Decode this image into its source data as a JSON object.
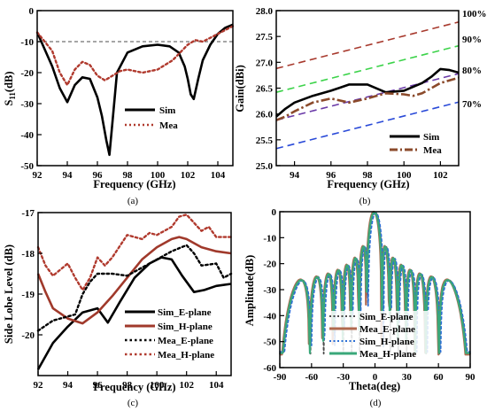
{
  "chart_data": [
    {
      "type": "line",
      "id": "a",
      "caption": "(a)",
      "xlabel": "Frequency (GHz)",
      "ylabel": "S11(dB)",
      "ylabel_main": "S",
      "ylabel_sub": "11",
      "ylabel_unit": "(dB)",
      "xlim": [
        92,
        105
      ],
      "ylim": [
        -50,
        0
      ],
      "xticks": [
        92,
        94,
        96,
        98,
        100,
        102,
        104
      ],
      "yticks": [
        0,
        -10,
        -20,
        -30,
        -40,
        -50
      ],
      "grid": false,
      "legend_position": "center-right",
      "reference_lines": [
        {
          "y": -10,
          "color": "#888888",
          "style": "dashed"
        }
      ],
      "series": [
        {
          "name": "Sim",
          "color": "#000000",
          "style": "solid",
          "x": [
            92,
            93,
            93.5,
            94,
            94.5,
            95,
            95.5,
            96,
            96.3,
            96.6,
            96.8,
            97,
            97.3,
            98,
            99,
            100,
            100.8,
            101.4,
            101.8,
            102,
            102.2,
            102.4,
            102.7,
            103,
            103.5,
            104,
            104.5,
            105
          ],
          "y": [
            -7,
            -18,
            -25,
            -29.5,
            -24,
            -21.5,
            -22,
            -28,
            -34,
            -42,
            -46.5,
            -36,
            -20,
            -13.5,
            -11.5,
            -11,
            -11.5,
            -13.5,
            -18,
            -22,
            -27,
            -28.5,
            -22,
            -16,
            -11,
            -7.5,
            -5.5,
            -4.5
          ]
        },
        {
          "name": "Mea",
          "color": "#b03a2e",
          "style": "dotted",
          "x": [
            92,
            93,
            93.5,
            94,
            94.5,
            95,
            95.5,
            96,
            96.5,
            97,
            97.5,
            98,
            98.5,
            99,
            100,
            101,
            102,
            102.5,
            103,
            104,
            105
          ],
          "y": [
            -7,
            -13,
            -20,
            -24,
            -19,
            -16.5,
            -17.5,
            -21,
            -22.5,
            -21,
            -19.5,
            -19,
            -19.5,
            -20,
            -19,
            -16,
            -11,
            -9.5,
            -10,
            -7.5,
            -5
          ]
        }
      ]
    },
    {
      "type": "line",
      "id": "b",
      "caption": "(b)",
      "xlabel": "Frequency (GHz)",
      "ylabel": "Gain(dBi)",
      "xlim": [
        93,
        103
      ],
      "ylim": [
        25.0,
        28.0
      ],
      "xticks": [
        94,
        96,
        98,
        100,
        102
      ],
      "yticks": [
        25.0,
        25.5,
        26.0,
        26.5,
        27.0,
        27.5,
        28.0
      ],
      "ytick_labels": [
        "25.0",
        "25.5",
        "26.0",
        "26.5",
        "27.0",
        "27.5",
        "28.0"
      ],
      "right_labels": [
        {
          "text": "100%",
          "y": 27.95
        },
        {
          "text": "90%",
          "y": 27.45
        },
        {
          "text": "80%",
          "y": 26.85
        },
        {
          "text": "70%",
          "y": 26.2
        }
      ],
      "grid": false,
      "legend_position": "bottom-right",
      "efficiency_lines": [
        {
          "color": "#a83a2e",
          "y_start": 26.88,
          "y_end": 27.78
        },
        {
          "color": "#3cd34a",
          "y_start": 26.42,
          "y_end": 27.32
        },
        {
          "color": "#6a3aa8",
          "y_start": 25.88,
          "y_end": 26.78
        },
        {
          "color": "#2a4ad8",
          "y_start": 25.33,
          "y_end": 26.23
        }
      ],
      "series": [
        {
          "name": "Sim",
          "color": "#000000",
          "style": "solid",
          "x": [
            93,
            93.5,
            94,
            95,
            96,
            97,
            98,
            99,
            100,
            101,
            101.5,
            102,
            102.5,
            103
          ],
          "y": [
            25.95,
            26.1,
            26.22,
            26.35,
            26.45,
            26.57,
            26.57,
            26.42,
            26.45,
            26.6,
            26.72,
            26.87,
            26.85,
            26.8
          ]
        },
        {
          "name": "Mea",
          "color": "#8b4a2b",
          "style": "dashdot",
          "x": [
            93,
            93.5,
            94,
            95,
            96,
            97,
            98,
            99,
            100,
            100.5,
            101,
            102,
            103
          ],
          "y": [
            25.88,
            25.95,
            26.05,
            26.22,
            26.3,
            26.22,
            26.3,
            26.4,
            26.38,
            26.35,
            26.4,
            26.6,
            26.7
          ]
        }
      ]
    },
    {
      "type": "line",
      "id": "c",
      "caption": "(c)",
      "xlabel": "Frequency (GHz)",
      "ylabel": "Side Lobe Level (dB)",
      "xlim": [
        92,
        105
      ],
      "ylim": [
        -21,
        -17
      ],
      "xticks": [
        92,
        94,
        96,
        98,
        100,
        102,
        104
      ],
      "yticks": [
        -17,
        -18,
        -19,
        -20
      ],
      "grid": false,
      "legend_position": "bottom-right",
      "series": [
        {
          "name": "Sim_E-plane",
          "color": "#000000",
          "style": "solid",
          "x": [
            92,
            93,
            94,
            95,
            96,
            96.7,
            97.5,
            98.5,
            99.5,
            100.3,
            101,
            101.7,
            102.5,
            103.2,
            104,
            105
          ],
          "y": [
            -20.85,
            -20.2,
            -19.8,
            -19.45,
            -19.35,
            -19.7,
            -19.2,
            -18.6,
            -18.25,
            -18.1,
            -18.15,
            -18.55,
            -18.95,
            -18.9,
            -18.8,
            -18.75
          ]
        },
        {
          "name": "Sim_H-plane",
          "color": "#a0392b",
          "style": "solid",
          "x": [
            92,
            92.5,
            93,
            94,
            95,
            96,
            97,
            98,
            99,
            100,
            101,
            101.5,
            102,
            103,
            104,
            105
          ],
          "y": [
            -18.5,
            -18.95,
            -19.35,
            -19.6,
            -19.72,
            -19.45,
            -19.05,
            -18.6,
            -18.15,
            -17.85,
            -17.65,
            -17.6,
            -17.65,
            -17.85,
            -17.95,
            -18.0
          ]
        },
        {
          "name": "Mea_E-plane",
          "color": "#000000",
          "style": "dotted",
          "x": [
            92,
            93,
            94,
            94.5,
            95,
            95.5,
            96,
            97,
            98,
            99,
            99.5,
            100,
            101,
            102,
            102.5,
            103,
            104,
            104.5,
            105
          ],
          "y": [
            -19.9,
            -19.65,
            -19.55,
            -19.5,
            -19.0,
            -18.7,
            -18.5,
            -18.5,
            -18.55,
            -18.35,
            -18.25,
            -18.15,
            -17.95,
            -17.8,
            -18.0,
            -18.3,
            -18.25,
            -18.6,
            -18.5
          ]
        },
        {
          "name": "Mea_H-plane",
          "color": "#b03a2e",
          "style": "dotted",
          "x": [
            92,
            92.5,
            93,
            93.5,
            94,
            94.5,
            95,
            95.5,
            96,
            96.5,
            97,
            98,
            99,
            99.5,
            100,
            101,
            101.5,
            102,
            103,
            103.5,
            104,
            105
          ],
          "y": [
            -17.85,
            -18.3,
            -18.55,
            -18.4,
            -18.25,
            -18.6,
            -18.9,
            -18.6,
            -18.1,
            -18.3,
            -18.1,
            -17.55,
            -17.65,
            -17.5,
            -17.55,
            -17.35,
            -17.1,
            -17.05,
            -17.45,
            -17.35,
            -17.6,
            -17.6
          ]
        }
      ]
    },
    {
      "type": "line",
      "id": "d",
      "caption": "(d)",
      "xlabel": "Theta(deg)",
      "ylabel": "Amplitude(dB)",
      "xlim": [
        -90,
        90
      ],
      "ylim": [
        -60,
        0
      ],
      "xticks": [
        -90,
        -60,
        -30,
        0,
        30,
        60,
        90
      ],
      "yticks": [
        0,
        -10,
        -20,
        -30,
        -40,
        -50,
        -60
      ],
      "grid": false,
      "legend_position": "bottom-center",
      "series": [
        {
          "name": "Sim_E-plane",
          "color": "#4a4a4a",
          "style": "dotted",
          "kind": "pattern",
          "sll": 0.5,
          "offset": 0.0
        },
        {
          "name": "Mea_E-plane",
          "color": "#b06a4f",
          "style": "solid",
          "kind": "pattern",
          "sll": 0.0,
          "offset": 1.2
        },
        {
          "name": "Sim_H-plane",
          "color": "#2c6fd6",
          "style": "dotted",
          "kind": "pattern",
          "sll": 1.5,
          "offset": -0.8
        },
        {
          "name": "Mea_H-plane",
          "color": "#3aa87a",
          "style": "solid",
          "kind": "pattern",
          "sll": 0.8,
          "offset": 0.6
        }
      ]
    }
  ]
}
